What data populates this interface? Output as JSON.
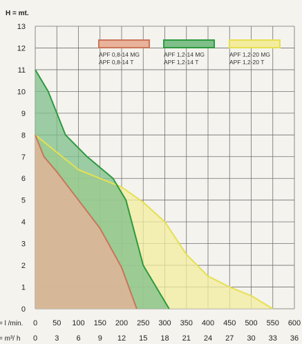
{
  "chart_data": {
    "type": "area",
    "title": "",
    "ylabel": "H = mt.",
    "xlabel_flow_lmin": "= l /min.",
    "xlabel_flow_m3h": "= m³/ h",
    "ylim": [
      0,
      13
    ],
    "xlim": [
      0,
      600
    ],
    "y_ticks": [
      "0",
      "1",
      "2",
      "3",
      "4",
      "5",
      "6",
      "7",
      "8",
      "9",
      "10",
      "11",
      "12",
      "13"
    ],
    "x_ticks_lmin": [
      "0",
      "50",
      "100",
      "150",
      "200",
      "250",
      "300",
      "350",
      "400",
      "450",
      "500",
      "550",
      "600"
    ],
    "x_ticks_m3h": [
      "0",
      "3",
      "6",
      "9",
      "12",
      "15",
      "18",
      "21",
      "24",
      "27",
      "30",
      "33",
      "36"
    ],
    "grid": true,
    "legend_position": "top-right",
    "series": [
      {
        "legend_line1": "APF 0,8-14 MG",
        "legend_line2": "APF 0,8-14 T",
        "color": "#c9755a",
        "fill": "#e9b29a",
        "x": [
          0,
          20,
          50,
          100,
          150,
          200,
          235
        ],
        "y": [
          8,
          7,
          6.3,
          5,
          3.7,
          1.9,
          0
        ]
      },
      {
        "legend_line1": "APF 1,2-14 MG",
        "legend_line2": "APF 1,2-14 T",
        "color": "#2c9a3c",
        "fill": "#7fbf8a",
        "x": [
          0,
          30,
          70,
          120,
          180,
          210,
          250,
          310
        ],
        "y": [
          11,
          10,
          8,
          7,
          6,
          5,
          2,
          0
        ]
      },
      {
        "legend_line1": "APF 1,2-20 MG",
        "legend_line2": "APF 1,2-20 T",
        "color": "#e6e050",
        "fill": "#f3ec9e",
        "x": [
          0,
          50,
          100,
          150,
          200,
          250,
          300,
          350,
          400,
          450,
          500,
          550
        ],
        "y": [
          8,
          7.2,
          6.4,
          6,
          5.6,
          4.9,
          4,
          2.5,
          1.5,
          1,
          0.6,
          0
        ]
      }
    ]
  }
}
